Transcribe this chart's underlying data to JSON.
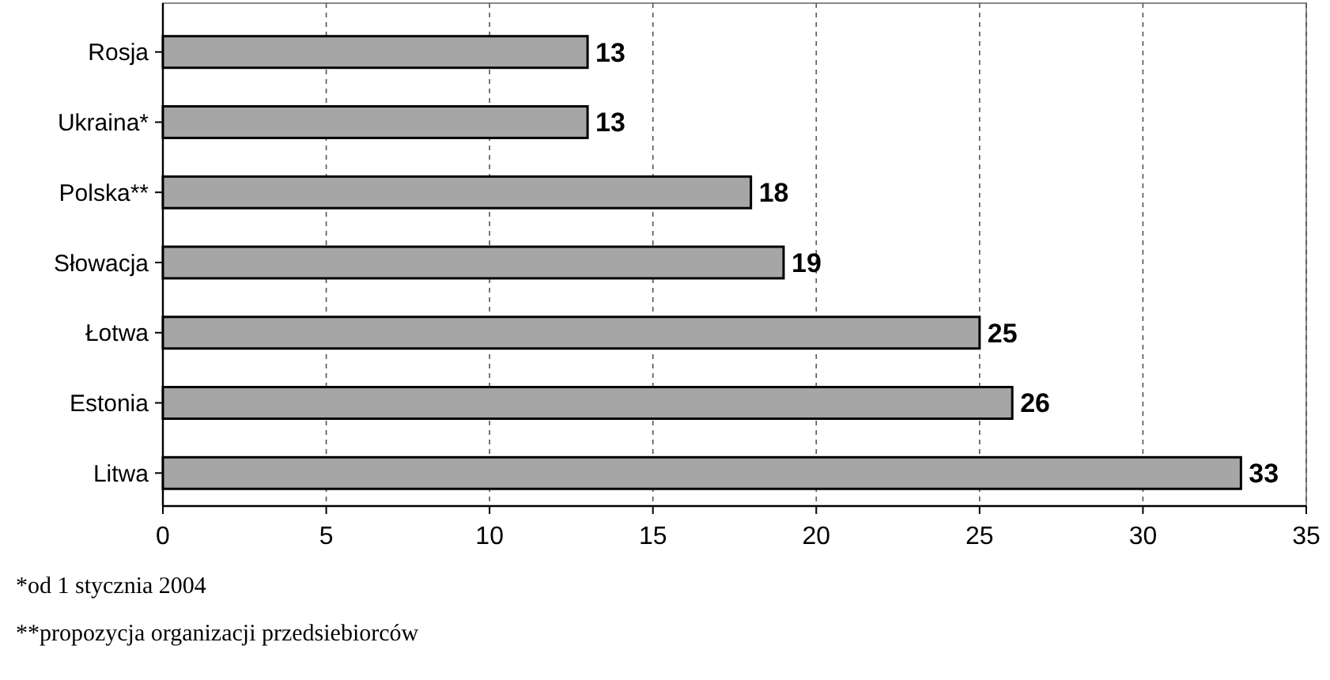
{
  "chart_data": {
    "type": "bar",
    "orientation": "horizontal",
    "categories": [
      "Rosja",
      "Ukraina*",
      "Polska**",
      "Słowacja",
      "Łotwa",
      "Estonia",
      "Litwa"
    ],
    "values": [
      13,
      13,
      18,
      19,
      25,
      26,
      33
    ],
    "color": "#a6a6a6",
    "xlim": [
      0,
      35
    ],
    "xticks": [
      0,
      5,
      10,
      15,
      20,
      25,
      30,
      35
    ],
    "grid": "x",
    "data_labels": true,
    "annotations": [
      "*od 1 stycznia 2004",
      "**propozycja organizacji przedsiebiorców"
    ]
  }
}
